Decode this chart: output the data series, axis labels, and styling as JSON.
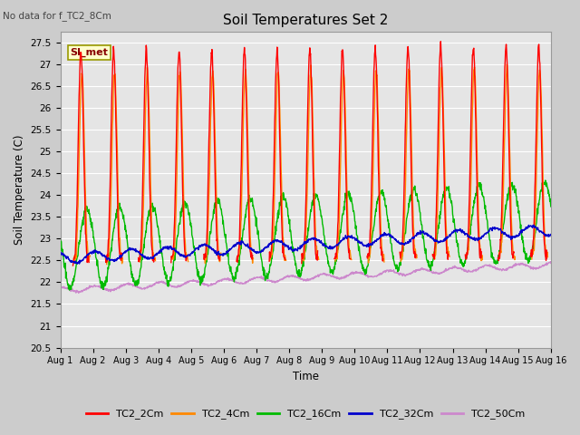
{
  "title": "Soil Temperatures Set 2",
  "subtitle": "No data for f_TC2_8Cm",
  "xlabel": "Time",
  "ylabel": "Soil Temperature (C)",
  "ylim": [
    20.5,
    27.75
  ],
  "fig_color": "#c8c8c8",
  "plot_bg": "#e8e8e8",
  "legend_label": "SI_met",
  "series": {
    "TC2_2Cm": {
      "color": "#ff0000",
      "lw": 1.0
    },
    "TC2_4Cm": {
      "color": "#ff8800",
      "lw": 1.0
    },
    "TC2_16Cm": {
      "color": "#00bb00",
      "lw": 1.0
    },
    "TC2_32Cm": {
      "color": "#0000cc",
      "lw": 1.0
    },
    "TC2_50Cm": {
      "color": "#cc88cc",
      "lw": 1.0
    }
  },
  "xtick_labels": [
    "Aug 1",
    "Aug 2",
    "Aug 3",
    "Aug 4",
    "Aug 5",
    "Aug 6",
    "Aug 7",
    "Aug 8",
    "Aug 9",
    "Aug 10",
    "Aug 11",
    "Aug 12",
    "Aug 13",
    "Aug 14",
    "Aug 15",
    "Aug 16"
  ],
  "ytick_vals": [
    20.5,
    21.0,
    21.5,
    22.0,
    22.5,
    23.0,
    23.5,
    24.0,
    24.5,
    25.0,
    25.5,
    26.0,
    26.5,
    27.0,
    27.5
  ],
  "n_points": 1440,
  "days": 15
}
